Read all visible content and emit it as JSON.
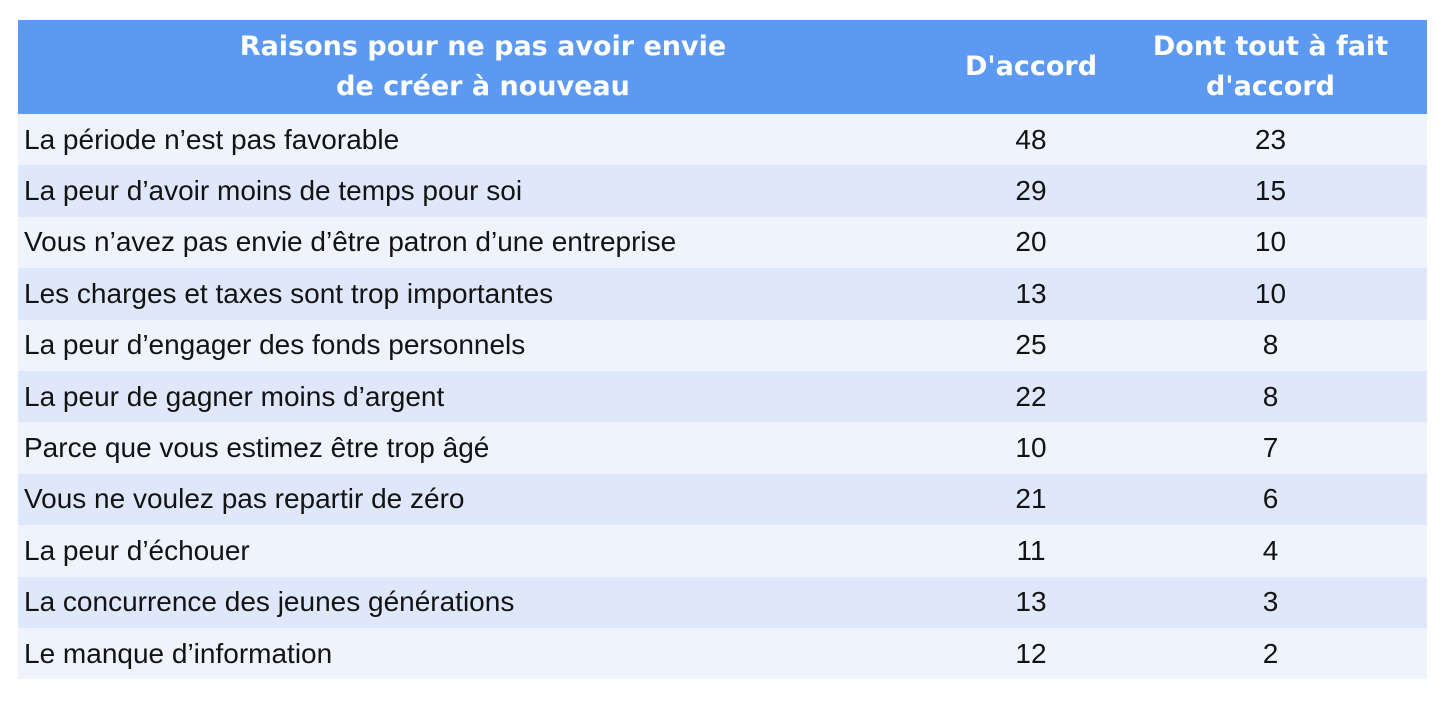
{
  "colors": {
    "header_bg": "#5B99F3",
    "header_text": "#FFFFFF",
    "row_light": "#EEF3FC",
    "row_dark": "#DEE8FA",
    "body_text": "#131313",
    "page_bg": "#FFFFFF"
  },
  "table_header": {
    "reasons": "Raisons pour ne pas avoir envie\nde créer à nouveau",
    "accord": "D'accord",
    "tout_a_fait": "Dont tout à fait\nd'accord"
  },
  "chart_data": {
    "type": "table",
    "title": "Raisons pour ne pas avoir envie de créer à nouveau",
    "columns": [
      "Raisons pour ne pas avoir envie de créer à nouveau",
      "D'accord",
      "Dont tout à fait d'accord"
    ],
    "rows": [
      [
        "La période n’est pas favorable",
        48,
        23
      ],
      [
        "La peur d’avoir moins de temps pour soi",
        29,
        15
      ],
      [
        "Vous n’avez pas envie d’être patron d’une entreprise",
        20,
        10
      ],
      [
        "Les charges et taxes sont trop importantes",
        13,
        10
      ],
      [
        "La peur d’engager des fonds personnels",
        25,
        8
      ],
      [
        "La peur de gagner moins d’argent",
        22,
        8
      ],
      [
        "Parce que vous estimez être trop âgé",
        10,
        7
      ],
      [
        "Vous ne voulez pas repartir de zéro",
        21,
        6
      ],
      [
        "La peur d’échouer",
        11,
        4
      ],
      [
        "La concurrence des jeunes générations",
        13,
        3
      ],
      [
        "Le manque d’information",
        12,
        2
      ]
    ],
    "layout": {
      "grid": false,
      "header_position": "top",
      "row_striping": "alternating"
    }
  }
}
